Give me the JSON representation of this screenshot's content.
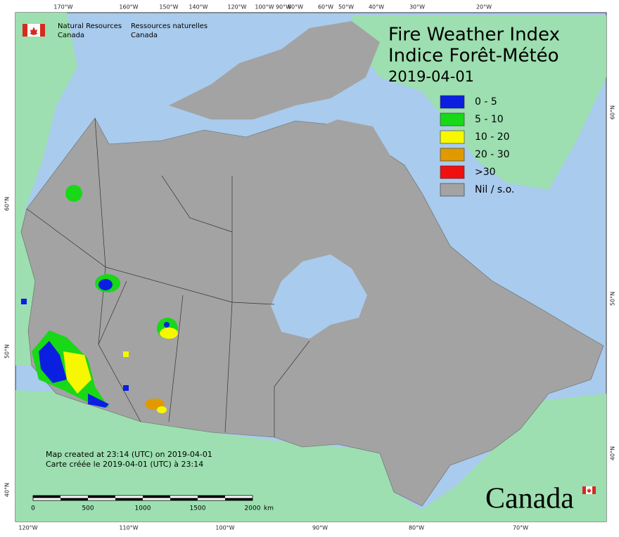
{
  "header": {
    "agency_en": [
      "Natural Resources",
      "Canada"
    ],
    "agency_fr": [
      "Ressources naturelles",
      "Canada"
    ]
  },
  "title": {
    "line1": "Fire Weather Index",
    "line2": "Indice Forêt-Météo",
    "date": "2019-04-01"
  },
  "legend": [
    {
      "label": "0 - 5",
      "color": "#0a1fe0"
    },
    {
      "label": "5 - 10",
      "color": "#18d818"
    },
    {
      "label": "10 - 20",
      "color": "#f7f700"
    },
    {
      "label": "20 - 30",
      "color": "#e09a00"
    },
    {
      "label": ">30",
      "color": "#f01010"
    },
    {
      "label": "Nil / s.o.",
      "color": "#a3a3a3"
    }
  ],
  "graticule": {
    "top": [
      "170°W",
      "160°W",
      "150°W",
      "140°W",
      "120°W",
      "100°W",
      "90°W",
      "80°W",
      "60°W",
      "50°W",
      "40°W",
      "30°W",
      "20°W"
    ],
    "bottom": [
      "120°W",
      "110°W",
      "100°W",
      "90°W",
      "80°W",
      "70°W"
    ],
    "left": [
      "60°N",
      "50°N",
      "40°N"
    ],
    "right": [
      "60°N",
      "50°N",
      "40°N"
    ]
  },
  "notes": [
    "Map created at 23:14 (UTC) on 2019-04-01",
    "Carte créée le 2019-04-01 (UTC) à 23:14"
  ],
  "scale_bar": {
    "labels": [
      "0",
      "500",
      "1000",
      "1500",
      "2000"
    ],
    "unit": "km"
  },
  "wordmark": "Canada"
}
